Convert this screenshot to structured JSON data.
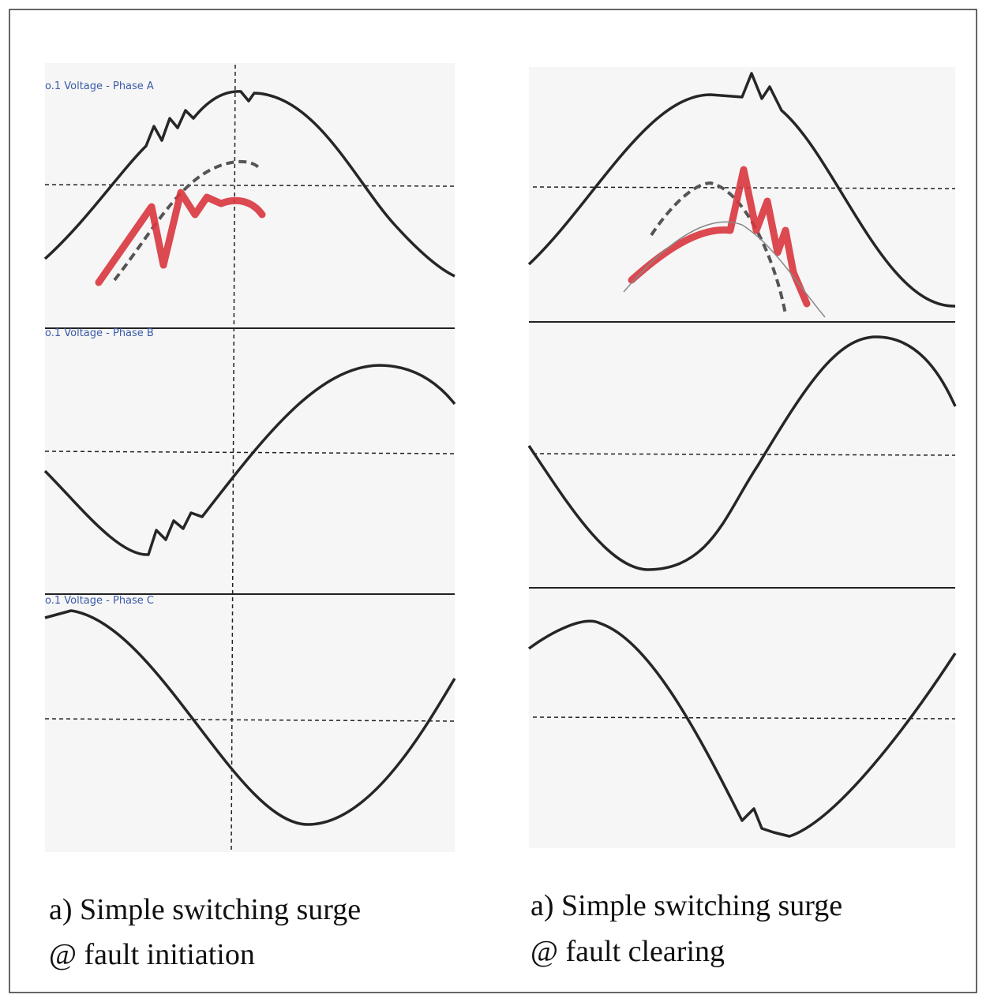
{
  "panels": [
    {
      "traces": [
        "o.1 Voltage - Phase A",
        "o.1 Voltage - Phase B",
        "o.1 Voltage - Phase C"
      ],
      "caption": [
        "a) Simple switching surge",
        "@ fault initiation"
      ]
    },
    {
      "caption": [
        "a) Simple switching surge",
        "@ fault clearing"
      ]
    }
  ]
}
